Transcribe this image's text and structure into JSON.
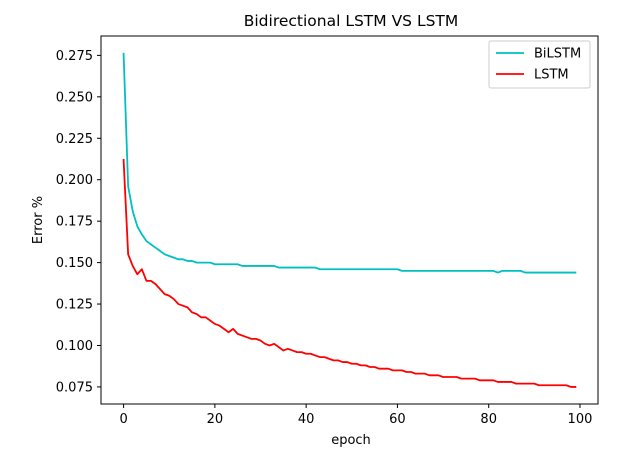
{
  "chart_data": {
    "type": "line",
    "title": "Bidirectional LSTM VS LSTM",
    "xlabel": "epoch",
    "ylabel": "Error %",
    "xlim": [
      -4.95,
      103.95
    ],
    "ylim": [
      0.0647,
      0.2867
    ],
    "xticks": [
      0,
      20,
      40,
      60,
      80,
      100
    ],
    "yticks": [
      0.075,
      0.1,
      0.125,
      0.15,
      0.175,
      0.2,
      0.225,
      0.25,
      0.275
    ],
    "legend_position": "top-right",
    "grid": false,
    "x": [
      0,
      1,
      2,
      3,
      4,
      5,
      6,
      7,
      8,
      9,
      10,
      11,
      12,
      13,
      14,
      15,
      16,
      17,
      18,
      19,
      20,
      21,
      22,
      23,
      24,
      25,
      26,
      27,
      28,
      29,
      30,
      31,
      32,
      33,
      34,
      35,
      36,
      37,
      38,
      39,
      40,
      41,
      42,
      43,
      44,
      45,
      46,
      47,
      48,
      49,
      50,
      51,
      52,
      53,
      54,
      55,
      56,
      57,
      58,
      59,
      60,
      61,
      62,
      63,
      64,
      65,
      66,
      67,
      68,
      69,
      70,
      71,
      72,
      73,
      74,
      75,
      76,
      77,
      78,
      79,
      80,
      81,
      82,
      83,
      84,
      85,
      86,
      87,
      88,
      89,
      90,
      91,
      92,
      93,
      94,
      95,
      96,
      97,
      98,
      99
    ],
    "series": [
      {
        "name": "BiLSTM",
        "color": "#00bfbf",
        "values": [
          0.276,
          0.196,
          0.181,
          0.172,
          0.167,
          0.163,
          0.161,
          0.159,
          0.157,
          0.155,
          0.154,
          0.153,
          0.152,
          0.152,
          0.151,
          0.151,
          0.15,
          0.15,
          0.15,
          0.15,
          0.149,
          0.149,
          0.149,
          0.149,
          0.149,
          0.149,
          0.148,
          0.148,
          0.148,
          0.148,
          0.148,
          0.148,
          0.148,
          0.148,
          0.147,
          0.147,
          0.147,
          0.147,
          0.147,
          0.147,
          0.147,
          0.147,
          0.147,
          0.146,
          0.146,
          0.146,
          0.146,
          0.146,
          0.146,
          0.146,
          0.146,
          0.146,
          0.146,
          0.146,
          0.146,
          0.146,
          0.146,
          0.146,
          0.146,
          0.146,
          0.146,
          0.145,
          0.145,
          0.145,
          0.145,
          0.145,
          0.145,
          0.145,
          0.145,
          0.145,
          0.145,
          0.145,
          0.145,
          0.145,
          0.145,
          0.145,
          0.145,
          0.145,
          0.145,
          0.145,
          0.145,
          0.145,
          0.144,
          0.145,
          0.145,
          0.145,
          0.145,
          0.145,
          0.144,
          0.144,
          0.144,
          0.144,
          0.144,
          0.144,
          0.144,
          0.144,
          0.144,
          0.144,
          0.144,
          0.144
        ]
      },
      {
        "name": "LSTM",
        "color": "#ff0000",
        "values": [
          0.212,
          0.155,
          0.148,
          0.143,
          0.146,
          0.139,
          0.139,
          0.137,
          0.134,
          0.131,
          0.13,
          0.128,
          0.125,
          0.124,
          0.123,
          0.12,
          0.119,
          0.117,
          0.117,
          0.115,
          0.113,
          0.112,
          0.11,
          0.108,
          0.11,
          0.107,
          0.106,
          0.105,
          0.104,
          0.104,
          0.103,
          0.101,
          0.1,
          0.101,
          0.099,
          0.097,
          0.098,
          0.097,
          0.096,
          0.096,
          0.095,
          0.095,
          0.094,
          0.093,
          0.093,
          0.092,
          0.091,
          0.091,
          0.09,
          0.09,
          0.089,
          0.089,
          0.088,
          0.088,
          0.087,
          0.087,
          0.086,
          0.086,
          0.086,
          0.085,
          0.085,
          0.085,
          0.084,
          0.084,
          0.083,
          0.083,
          0.083,
          0.082,
          0.082,
          0.082,
          0.081,
          0.081,
          0.081,
          0.081,
          0.08,
          0.08,
          0.08,
          0.08,
          0.079,
          0.079,
          0.079,
          0.079,
          0.078,
          0.078,
          0.078,
          0.078,
          0.077,
          0.077,
          0.077,
          0.077,
          0.077,
          0.076,
          0.076,
          0.076,
          0.076,
          0.076,
          0.076,
          0.076,
          0.075,
          0.075
        ]
      }
    ]
  }
}
